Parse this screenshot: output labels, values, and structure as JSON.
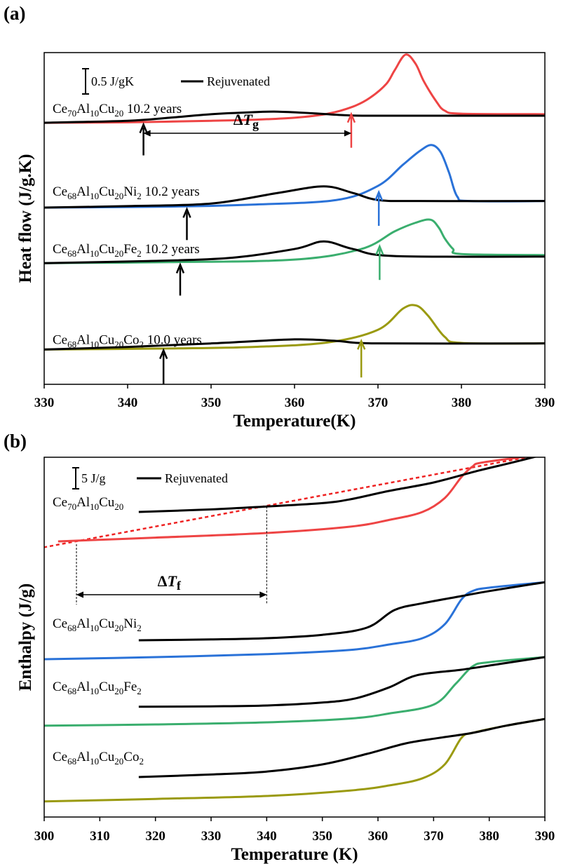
{
  "chart_data": [
    {
      "type": "line",
      "panel_label": "(a)",
      "xlabel": "Temperature(K)",
      "ylabel": "Heat flow (J/g.K)",
      "xlim": [
        330,
        390
      ],
      "ylim": [
        0,
        6.57
      ],
      "xticks": [
        330,
        340,
        350,
        360,
        370,
        380,
        390
      ],
      "y_ticks_shown": false,
      "scale_bar": {
        "label": "0.5 J/gK",
        "value": 0.5
      },
      "legend": {
        "label": "Rejuvenated",
        "color": "#000000",
        "position": "top-left"
      },
      "annotation": {
        "text": "ΔT",
        "sub": "g",
        "from": 341.9,
        "to": 366.8
      },
      "groups": [
        {
          "label": "Ce70Al10Cu20 10.2 years",
          "color": "#ee4444",
          "aged": [
            [
              330,
              5.18
            ],
            [
              340,
              5.19
            ],
            [
              350,
              5.22
            ],
            [
              355,
              5.24
            ],
            [
              360,
              5.28
            ],
            [
              364,
              5.36
            ],
            [
              367,
              5.5
            ],
            [
              369,
              5.67
            ],
            [
              371,
              5.95
            ],
            [
              372,
              6.22
            ],
            [
              373.3,
              6.53
            ],
            [
              374.5,
              6.35
            ],
            [
              375.5,
              6.0
            ],
            [
              377,
              5.6
            ],
            [
              378,
              5.42
            ],
            [
              380,
              5.36
            ],
            [
              390,
              5.35
            ]
          ],
          "rejuvenated": [
            [
              330,
              5.18
            ],
            [
              340,
              5.22
            ],
            [
              345,
              5.28
            ],
            [
              350,
              5.35
            ],
            [
              355,
              5.39
            ],
            [
              358,
              5.4
            ],
            [
              362,
              5.37
            ],
            [
              366,
              5.33
            ],
            [
              370,
              5.32
            ],
            [
              390,
              5.32
            ]
          ],
          "arrows": {
            "rejuvenated_T": 341.9,
            "aged_T": 366.8
          }
        },
        {
          "label": "Ce68Al10Cu20Ni2 10.2 years",
          "color": "#2a72d8",
          "aged": [
            [
              330,
              3.5
            ],
            [
              345,
              3.52
            ],
            [
              355,
              3.56
            ],
            [
              365,
              3.65
            ],
            [
              370,
              3.93
            ],
            [
              373,
              4.35
            ],
            [
              375,
              4.62
            ],
            [
              376.4,
              4.74
            ],
            [
              377.5,
              4.6
            ],
            [
              378.5,
              4.2
            ],
            [
              379.5,
              3.72
            ],
            [
              381,
              3.63
            ],
            [
              390,
              3.63
            ]
          ],
          "rejuvenated": [
            [
              330,
              3.5
            ],
            [
              340,
              3.53
            ],
            [
              350,
              3.58
            ],
            [
              358,
              3.79
            ],
            [
              363.5,
              3.92
            ],
            [
              367,
              3.79
            ],
            [
              370,
              3.65
            ],
            [
              375,
              3.63
            ],
            [
              390,
              3.63
            ]
          ],
          "arrows": {
            "rejuvenated_T": 347.1,
            "aged_T": 370.1
          }
        },
        {
          "label": "Ce68Al10Cu20Fe2 10.2 years",
          "color": "#3aae6e",
          "aged": [
            [
              330,
              2.4
            ],
            [
              345,
              2.42
            ],
            [
              360,
              2.47
            ],
            [
              368,
              2.68
            ],
            [
              372,
              3.03
            ],
            [
              374.5,
              3.2
            ],
            [
              376.3,
              3.26
            ],
            [
              377.3,
              3.1
            ],
            [
              378,
              2.89
            ],
            [
              379,
              2.68
            ],
            [
              380,
              2.58
            ],
            [
              390,
              2.56
            ]
          ],
          "rejuvenated": [
            [
              330,
              2.4
            ],
            [
              342,
              2.44
            ],
            [
              352,
              2.5
            ],
            [
              360,
              2.68
            ],
            [
              363.5,
              2.83
            ],
            [
              367,
              2.68
            ],
            [
              372,
              2.54
            ],
            [
              390,
              2.53
            ]
          ],
          "arrows": {
            "rejuvenated_T": 346.3,
            "aged_T": 370.2
          }
        },
        {
          "label": "Ce68Al10Cu20Co2 10.0 years",
          "color": "#9a9a10",
          "aged": [
            [
              330,
              0.69
            ],
            [
              345,
              0.71
            ],
            [
              355,
              0.74
            ],
            [
              364,
              0.83
            ],
            [
              370,
              1.08
            ],
            [
              373,
              1.5
            ],
            [
              374.6,
              1.56
            ],
            [
              376,
              1.36
            ],
            [
              378,
              0.94
            ],
            [
              380,
              0.82
            ],
            [
              390,
              0.81
            ]
          ],
          "rejuvenated": [
            [
              330,
              0.69
            ],
            [
              340,
              0.74
            ],
            [
              350,
              0.81
            ],
            [
              360,
              0.89
            ],
            [
              365,
              0.86
            ],
            [
              370,
              0.81
            ],
            [
              390,
              0.81
            ]
          ],
          "arrows": {
            "rejuvenated_T": 344.3,
            "aged_T": 368.0
          }
        }
      ]
    },
    {
      "type": "line",
      "panel_label": "(b)",
      "xlabel": "Temperature (K)",
      "ylabel": "Enthalpy (J/g)",
      "xlim": [
        300,
        390
      ],
      "ylim": [
        0,
        85.5
      ],
      "xticks": [
        300,
        310,
        320,
        330,
        340,
        350,
        360,
        370,
        380,
        390
      ],
      "y_ticks_shown": false,
      "scale_bar": {
        "label": "5 J/g",
        "value": 5
      },
      "legend": {
        "label": "Rejuvenated",
        "color": "#000000",
        "position": "top-left"
      },
      "annotation": {
        "text": "ΔT",
        "sub": "f",
        "from": 305.8,
        "to": 340
      },
      "extrapolation_line": {
        "color": "#ee2222",
        "style": "dashed",
        "points": [
          [
            300.9,
            64.5
          ],
          [
            390,
            86.3
          ]
        ]
      },
      "groups": [
        {
          "label": "Ce70Al10Cu20",
          "color": "#ee4444",
          "aged": [
            [
              302.5,
              65.5
            ],
            [
              320,
              66.4
            ],
            [
              340,
              67.5
            ],
            [
              355,
              69
            ],
            [
              362,
              70.6
            ],
            [
              368,
              72.5
            ],
            [
              372,
              75.8
            ],
            [
              375,
              80.8
            ],
            [
              377,
              83.3
            ],
            [
              379,
              84.3
            ],
            [
              390,
              86.2
            ]
          ],
          "rejuvenated": [
            [
              317,
              72.5
            ],
            [
              330,
              73.1
            ],
            [
              340,
              73.8
            ],
            [
              350,
              74.6
            ],
            [
              355,
              75.5
            ],
            [
              362,
              77.5
            ],
            [
              370,
              79.5
            ],
            [
              378,
              82.3
            ],
            [
              384,
              84.2
            ],
            [
              390,
              86.2
            ]
          ]
        },
        {
          "label": "Ce68Al10Cu20Ni2",
          "color": "#2a72d8",
          "aged": [
            [
              300,
              37.5
            ],
            [
              320,
              38
            ],
            [
              340,
              38.7
            ],
            [
              355,
              39.7
            ],
            [
              362,
              41
            ],
            [
              368,
              42.5
            ],
            [
              372,
              45.8
            ],
            [
              375,
              51.7
            ],
            [
              377,
              53.7
            ],
            [
              380,
              54.5
            ],
            [
              390,
              55.8
            ]
          ],
          "rejuvenated": [
            [
              317,
              42
            ],
            [
              330,
              42.2
            ],
            [
              340,
              42.5
            ],
            [
              350,
              43.3
            ],
            [
              358,
              45
            ],
            [
              363,
              49.2
            ],
            [
              368,
              50.8
            ],
            [
              375,
              52.5
            ],
            [
              380,
              53.7
            ],
            [
              390,
              55.8
            ]
          ]
        },
        {
          "label": "Ce68Al10Cu20Fe2",
          "color": "#3aae6e",
          "aged": [
            [
              300,
              21.7
            ],
            [
              320,
              22
            ],
            [
              340,
              22.5
            ],
            [
              355,
              23.4
            ],
            [
              362,
              24.6
            ],
            [
              370,
              26.7
            ],
            [
              374,
              31.7
            ],
            [
              377,
              35.8
            ],
            [
              380,
              36.8
            ],
            [
              390,
              38
            ]
          ],
          "rejuvenated": [
            [
              317,
              26.2
            ],
            [
              330,
              26.3
            ],
            [
              340,
              26.5
            ],
            [
              350,
              27.2
            ],
            [
              356,
              28.2
            ],
            [
              362,
              30.8
            ],
            [
              367,
              33.7
            ],
            [
              375,
              35
            ],
            [
              382,
              36.4
            ],
            [
              390,
              38
            ]
          ]
        },
        {
          "label": "Ce68Al10Cu20Co2",
          "color": "#9a9a10",
          "aged": [
            [
              300,
              3.7
            ],
            [
              320,
              4.3
            ],
            [
              340,
              5
            ],
            [
              355,
              6.3
            ],
            [
              362,
              7.5
            ],
            [
              368,
              9.2
            ],
            [
              372,
              12.5
            ],
            [
              375,
              18.8
            ],
            [
              377,
              20
            ],
            [
              383,
              21.7
            ],
            [
              390,
              23.3
            ]
          ],
          "rejuvenated": [
            [
              317,
              9.5
            ],
            [
              330,
              10.1
            ],
            [
              340,
              10.8
            ],
            [
              350,
              12.5
            ],
            [
              358,
              15
            ],
            [
              365,
              17.5
            ],
            [
              371,
              18.8
            ],
            [
              377,
              20
            ],
            [
              383,
              21.7
            ],
            [
              390,
              23.3
            ]
          ]
        }
      ]
    }
  ]
}
